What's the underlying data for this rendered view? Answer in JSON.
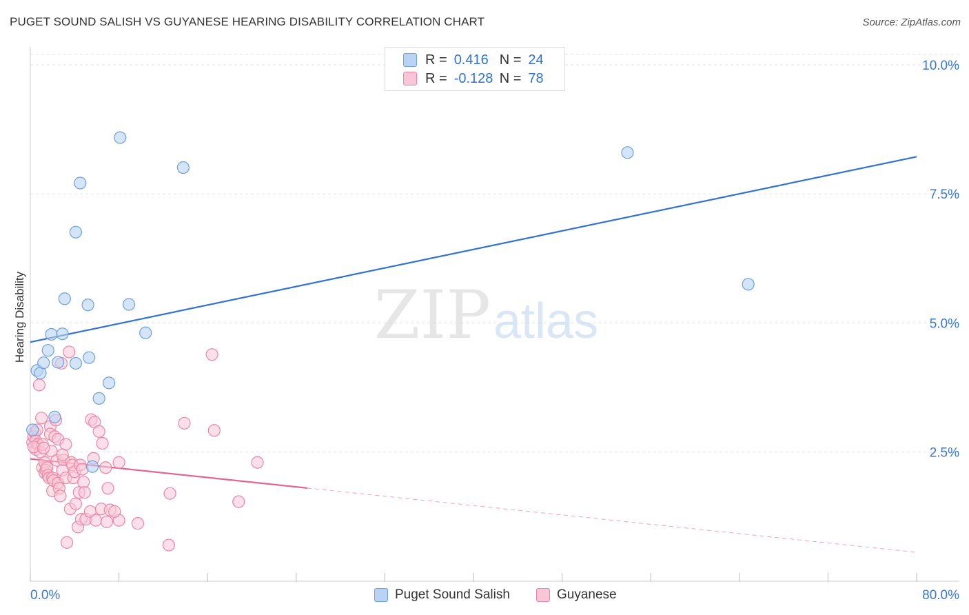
{
  "header": {
    "title": "PUGET SOUND SALISH VS GUYANESE HEARING DISABILITY CORRELATION CHART",
    "source": "Source: ZipAtlas.com"
  },
  "legend": {
    "row1": {
      "r_label": "R =",
      "r_value": "0.416",
      "n_label": "N =",
      "n_value": "24"
    },
    "row2": {
      "r_label": "R =",
      "r_value": "-0.128",
      "n_label": "N =",
      "n_value": "78"
    }
  },
  "colors": {
    "blue_fill": "#b9d3f4",
    "blue_stroke": "#6e9fe0",
    "blue_line": "#2f72d0",
    "pink_fill": "#f9c6d7",
    "pink_stroke": "#ec86a6",
    "pink_line": "#e2668f",
    "tick_text": "#3a77cf"
  },
  "watermark": {
    "part1": "ZIP",
    "part2": "atlas"
  },
  "chart_data": {
    "type": "scatter",
    "title": "PUGET SOUND SALISH VS GUYANESE HEARING DISABILITY CORRELATION CHART",
    "xlabel": "",
    "ylabel": "Hearing Disability",
    "xlim": [
      0,
      80
    ],
    "ylim": [
      0,
      10.2
    ],
    "x_tick_labels": [
      "0.0%",
      "80.0%"
    ],
    "y_ticks": [
      2.5,
      5.0,
      7.5,
      10.0
    ],
    "y_tick_labels": [
      "2.5%",
      "5.0%",
      "7.5%",
      "10.0%"
    ],
    "grid": true,
    "legend_position": "top-center",
    "series": [
      {
        "name": "Puget Sound Salish",
        "r": 0.416,
        "n": 24,
        "trend": {
          "x": [
            0,
            80
          ],
          "y": [
            4.63,
            8.22
          ],
          "dashed_from_x": null
        },
        "points": [
          [
            0.2,
            2.93
          ],
          [
            0.6,
            4.08
          ],
          [
            0.9,
            4.03
          ],
          [
            1.2,
            4.23
          ],
          [
            1.6,
            4.47
          ],
          [
            1.9,
            4.78
          ],
          [
            2.2,
            3.18
          ],
          [
            2.5,
            4.24
          ],
          [
            2.9,
            4.79
          ],
          [
            3.1,
            5.47
          ],
          [
            4.1,
            6.76
          ],
          [
            4.1,
            4.22
          ],
          [
            4.5,
            7.71
          ],
          [
            5.2,
            5.35
          ],
          [
            5.3,
            4.33
          ],
          [
            5.6,
            2.22
          ],
          [
            6.2,
            3.54
          ],
          [
            7.1,
            3.84
          ],
          [
            8.1,
            8.59
          ],
          [
            8.9,
            5.36
          ],
          [
            10.4,
            4.81
          ],
          [
            13.8,
            8.01
          ],
          [
            53.9,
            8.3
          ],
          [
            64.8,
            5.75
          ]
        ]
      },
      {
        "name": "Guyanese",
        "r": -0.128,
        "n": 78,
        "trend": {
          "x": [
            0,
            80
          ],
          "y": [
            2.37,
            0.56
          ],
          "dashed_from_x": 25
        },
        "points": [
          [
            0.2,
            2.69
          ],
          [
            0.3,
            2.8
          ],
          [
            0.4,
            2.88
          ],
          [
            0.5,
            2.72
          ],
          [
            0.5,
            2.55
          ],
          [
            0.6,
            2.93
          ],
          [
            0.7,
            2.65
          ],
          [
            0.8,
            3.8
          ],
          [
            0.9,
            2.5
          ],
          [
            1.0,
            3.16
          ],
          [
            1.1,
            2.65
          ],
          [
            1.1,
            2.2
          ],
          [
            1.3,
            2.1
          ],
          [
            1.3,
            2.3
          ],
          [
            1.4,
            2.15
          ],
          [
            1.5,
            2.2
          ],
          [
            1.6,
            2.05
          ],
          [
            1.7,
            2.0
          ],
          [
            1.8,
            3.0
          ],
          [
            1.8,
            2.85
          ],
          [
            1.9,
            2.52
          ],
          [
            2.0,
            2.0
          ],
          [
            2.0,
            1.75
          ],
          [
            2.1,
            1.95
          ],
          [
            2.2,
            2.8
          ],
          [
            2.3,
            3.12
          ],
          [
            2.4,
            2.34
          ],
          [
            2.5,
            2.75
          ],
          [
            2.5,
            1.9
          ],
          [
            2.6,
            1.8
          ],
          [
            2.7,
            1.65
          ],
          [
            2.8,
            4.22
          ],
          [
            2.9,
            2.15
          ],
          [
            3.0,
            2.35
          ],
          [
            3.2,
            2.65
          ],
          [
            3.2,
            2.0
          ],
          [
            3.3,
            0.75
          ],
          [
            3.5,
            4.44
          ],
          [
            3.6,
            1.4
          ],
          [
            3.7,
            2.3
          ],
          [
            3.8,
            2.25
          ],
          [
            3.9,
            2.0
          ],
          [
            4.0,
            2.12
          ],
          [
            4.1,
            1.5
          ],
          [
            4.3,
            1.05
          ],
          [
            4.4,
            1.72
          ],
          [
            4.5,
            2.25
          ],
          [
            4.6,
            1.2
          ],
          [
            4.7,
            2.17
          ],
          [
            4.8,
            1.92
          ],
          [
            4.9,
            1.72
          ],
          [
            5.0,
            1.2
          ],
          [
            5.4,
            1.35
          ],
          [
            5.5,
            3.13
          ],
          [
            5.7,
            2.38
          ],
          [
            5.8,
            3.08
          ],
          [
            5.9,
            1.18
          ],
          [
            6.2,
            2.9
          ],
          [
            6.4,
            1.4
          ],
          [
            6.5,
            2.67
          ],
          [
            6.8,
            2.2
          ],
          [
            6.9,
            1.15
          ],
          [
            7.0,
            1.8
          ],
          [
            7.2,
            1.38
          ],
          [
            8.0,
            1.18
          ],
          [
            8.0,
            2.3
          ],
          [
            9.7,
            1.12
          ],
          [
            12.5,
            0.7
          ],
          [
            12.6,
            1.7
          ],
          [
            13.9,
            3.06
          ],
          [
            16.4,
            4.39
          ],
          [
            16.6,
            2.92
          ],
          [
            18.8,
            1.54
          ],
          [
            20.5,
            2.3
          ],
          [
            0.3,
            2.6
          ],
          [
            1.2,
            2.58
          ],
          [
            2.9,
            2.45
          ],
          [
            7.6,
            1.35
          ]
        ]
      }
    ]
  },
  "bottom_legend": {
    "series1_label": "Puget Sound Salish",
    "series2_label": "Guyanese"
  }
}
